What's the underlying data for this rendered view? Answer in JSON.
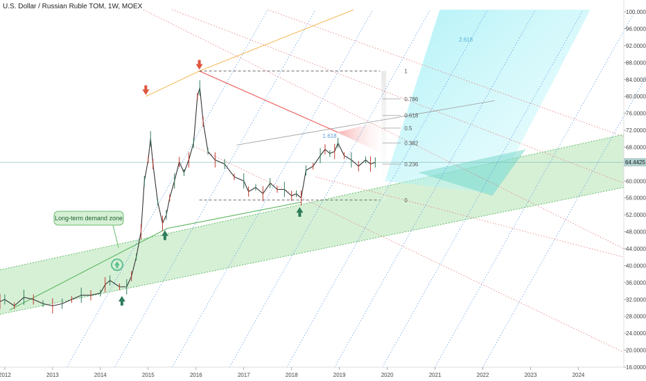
{
  "chart_data": {
    "type": "line",
    "title": "U.S. Dollar / Russian Ruble TOM, 1W, MOEX",
    "current_price": "64.4425",
    "y_ticks": [
      "16.0000",
      "20.0000",
      "24.0000",
      "28.0000",
      "32.0000",
      "36.0000",
      "40.0000",
      "44.0000",
      "48.0000",
      "52.0000",
      "56.0000",
      "60.0000",
      "64.0000",
      "68.0000",
      "72.0000",
      "76.0000",
      "80.0000",
      "84.0000",
      "88.0000",
      "92.0000",
      "96.0000",
      "100.0000"
    ],
    "x_ticks": [
      "2012",
      "2013",
      "2014",
      "2015",
      "2016",
      "2017",
      "2018",
      "2019",
      "2020",
      "2021",
      "2022",
      "2023",
      "2024"
    ],
    "ylim": [
      16,
      102
    ],
    "xlim": [
      2011.85,
      2025.0
    ],
    "series": [
      {
        "x": [
          2011.9,
          2012.0,
          2012.2,
          2012.4,
          2012.6,
          2012.8,
          2013.0,
          2013.2,
          2013.4,
          2013.6,
          2013.8,
          2014.0,
          2014.1,
          2014.2,
          2014.4,
          2014.55,
          2014.65,
          2014.75,
          2014.85,
          2014.92,
          2015.0,
          2015.05,
          2015.1,
          2015.2,
          2015.3,
          2015.38,
          2015.45,
          2015.55,
          2015.65,
          2015.75,
          2015.85,
          2015.95,
          2016.03,
          2016.08,
          2016.15,
          2016.25,
          2016.4,
          2016.6,
          2016.8,
          2017.0,
          2017.1,
          2017.25,
          2017.4,
          2017.55,
          2017.7,
          2017.85,
          2018.0,
          2018.1,
          2018.2,
          2018.3,
          2018.45,
          2018.6,
          2018.7,
          2018.8,
          2018.9,
          2018.97,
          2019.1,
          2019.25,
          2019.4,
          2019.55,
          2019.65,
          2019.75
        ],
        "y": [
          31.5,
          32.0,
          30.5,
          32.5,
          32.0,
          31.0,
          30.5,
          31.0,
          32.0,
          33.0,
          33.0,
          33.5,
          35.5,
          36.5,
          35.0,
          35.0,
          37.5,
          42.0,
          48.0,
          60.0,
          65.0,
          70.0,
          64.0,
          55.0,
          50.0,
          52.0,
          56.0,
          60.0,
          64.5,
          62.0,
          65.0,
          69.0,
          80.0,
          82.0,
          74.0,
          67.0,
          65.0,
          64.0,
          61.0,
          60.0,
          57.5,
          58.5,
          57.0,
          59.5,
          58.0,
          58.0,
          56.5,
          57.0,
          56.0,
          62.5,
          63.5,
          66.0,
          67.5,
          66.5,
          67.0,
          69.0,
          66.0,
          65.0,
          63.5,
          65.0,
          64.0,
          64.4
        ]
      }
    ],
    "markers": [
      {
        "x": 2014.95,
        "y": 80.0,
        "direction": "down"
      },
      {
        "x": 2016.07,
        "y": 86.0,
        "direction": "down"
      },
      {
        "x": 2015.35,
        "y": 48.5,
        "direction": "up"
      },
      {
        "x": 2014.45,
        "y": 33.0,
        "direction": "up"
      },
      {
        "x": 2018.17,
        "y": 54.0,
        "direction": "up"
      }
    ],
    "fib_levels": [
      {
        "label": "1",
        "value": 86.0
      },
      {
        "label": "0.786",
        "value": 79.4
      },
      {
        "label": "0.618",
        "value": 75.5
      },
      {
        "label": "0.5",
        "value": 72.5
      },
      {
        "label": "0.382",
        "value": 69.0
      },
      {
        "label": "0.236",
        "value": 64.0
      },
      {
        "label": "0",
        "value": 55.5
      }
    ],
    "annotations": {
      "demand_zone": "Long-term demand zone",
      "fib_ext_1": "1.618",
      "fib_ext_2": "2.618"
    },
    "colors": {
      "zone_fill": "#c8ebc8",
      "zone_edge": "#66bb6a",
      "down_arrow": "#e0563f",
      "up_arrow": "#2e7d5b",
      "trend_red": "#f06a6a",
      "guide_blue": "#4a90e2",
      "guide_red": "#e57373",
      "guide_orange": "#f5b041",
      "cyan_zone": "#a6f0f5"
    }
  }
}
